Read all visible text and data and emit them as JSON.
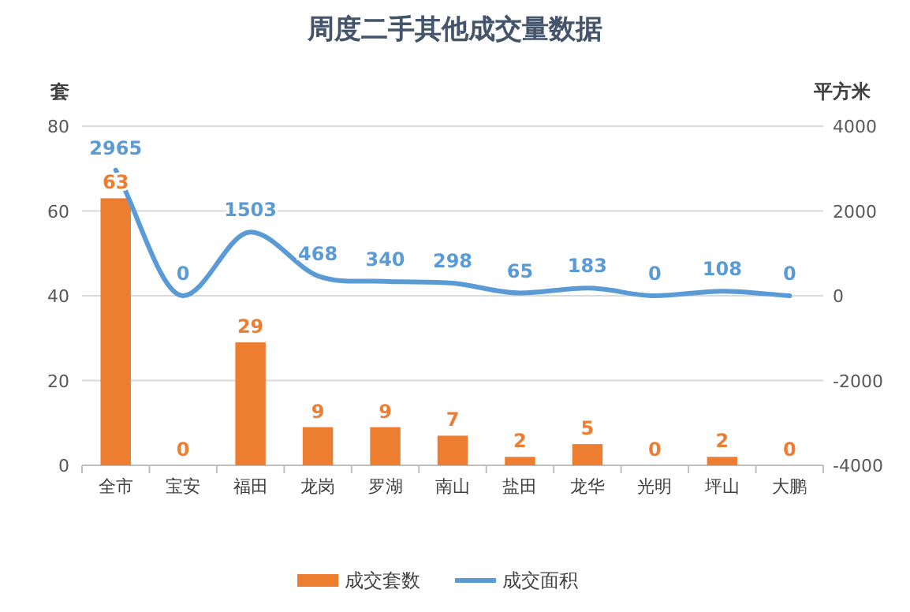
{
  "chart_data": {
    "type": "bar",
    "title": "周度二手其他成交量数据",
    "ylabel": "套",
    "y2label": "平方米",
    "categories": [
      "全市",
      "宝安",
      "福田",
      "龙岗",
      "罗湖",
      "南山",
      "盐田",
      "龙华",
      "光明",
      "坪山",
      "大鹏"
    ],
    "series": [
      {
        "name": "成交套数",
        "color": "#ed7d31",
        "values": [
          63,
          0,
          29,
          9,
          9,
          7,
          2,
          5,
          0,
          2,
          0
        ]
      },
      {
        "name": "成交面积",
        "type": "line",
        "axis": "y2",
        "color": "#5b9bd5",
        "marker": "none",
        "values": [
          2965,
          0,
          1503,
          468,
          340,
          298,
          65,
          183,
          0,
          108,
          0
        ]
      }
    ],
    "ylim": [
      0,
      80
    ],
    "yticks": [
      0,
      20,
      40,
      60,
      80
    ],
    "y2lim": [
      -4000,
      4000
    ],
    "y2ticks": [
      -4000,
      -2000,
      0,
      2000,
      4000
    ],
    "grid": "y",
    "legend": "bottom",
    "data_labels": true
  }
}
